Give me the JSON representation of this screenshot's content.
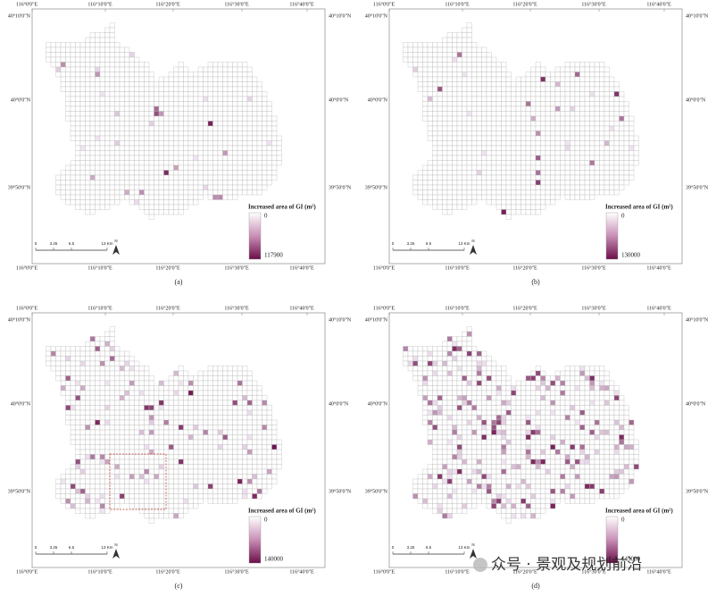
{
  "axes": {
    "lon": [
      "116°0'0\"E",
      "116°10'0\"E",
      "116°20'0\"E",
      "116°30'0\"E",
      "116°40'0\"E"
    ],
    "lat": [
      "40°10'0\"N",
      "40°0'0\"N",
      "39°50'0\"N"
    ]
  },
  "panels": [
    {
      "caption": "(a)",
      "legend": {
        "title": "Increased area of GI (m²)",
        "min": 0,
        "max": 117900
      }
    },
    {
      "caption": "(b)",
      "legend": {
        "title": "Increased area of GI (m²)",
        "min": 0,
        "max": 130000
      }
    },
    {
      "caption": "(c)",
      "legend": {
        "title": "Increased area of GI (m²)",
        "min": 0,
        "max": 140000
      }
    },
    {
      "caption": "(d)",
      "legend": {
        "title": "Increased area of GI (m²)",
        "min": 0,
        "max": 145000
      }
    }
  ],
  "scale_bar": {
    "labels": [
      "0",
      "3.25",
      "6.5",
      "13 Km"
    ],
    "north": "N"
  },
  "watermark": "众号 · 景观及规划前沿"
}
